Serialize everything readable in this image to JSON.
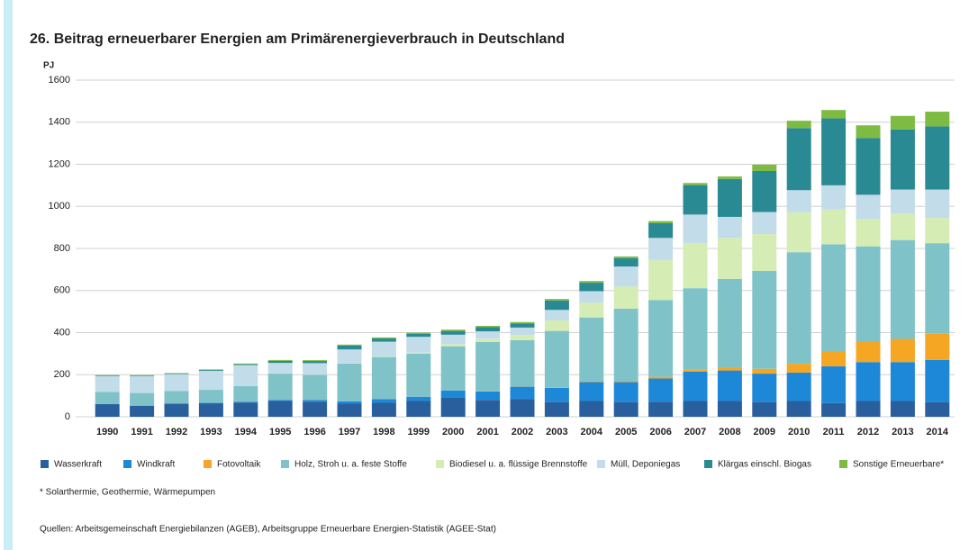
{
  "chart_data": {
    "type": "stacked_bar",
    "title": "26. Beitrag erneuerbarer Energien am Primärenergieverbrauch in Deutschland",
    "y_label": "PJ",
    "categories": [
      "1990",
      "1991",
      "1992",
      "1993",
      "1994",
      "1995",
      "1996",
      "1997",
      "1998",
      "1999",
      "2000",
      "2001",
      "2002",
      "2003",
      "2004",
      "2005",
      "2006",
      "2007",
      "2008",
      "2009",
      "2010",
      "2011",
      "2012",
      "2013",
      "2014"
    ],
    "series": [
      {
        "name": "Wasserkraft",
        "color": "#2a5f9e",
        "values": [
          60,
          52,
          62,
          64,
          68,
          75,
          72,
          62,
          68,
          75,
          90,
          80,
          85,
          70,
          75,
          70,
          72,
          75,
          75,
          70,
          75,
          65,
          75,
          75,
          70
        ]
      },
      {
        "name": "Windkraft",
        "color": "#1e88d8",
        "values": [
          0,
          1,
          1,
          2,
          3,
          5,
          7,
          11,
          16,
          20,
          35,
          40,
          58,
          67,
          90,
          95,
          110,
          140,
          145,
          135,
          135,
          175,
          185,
          185,
          200
        ]
      },
      {
        "name": "Fotovoltaik",
        "color": "#f5a623",
        "values": [
          0,
          0,
          0,
          0,
          0,
          0,
          0,
          0,
          0,
          0,
          0,
          1,
          1,
          1,
          2,
          4,
          8,
          11,
          15,
          23,
          42,
          70,
          95,
          110,
          125
        ]
      },
      {
        "name": "Holz, Stroh u. a. feste Stoffe",
        "color": "#7fc3c9",
        "values": [
          58,
          60,
          60,
          62,
          75,
          125,
          120,
          180,
          200,
          205,
          210,
          235,
          220,
          270,
          305,
          345,
          365,
          385,
          420,
          465,
          530,
          510,
          455,
          470,
          430
        ]
      },
      {
        "name": "Biodiesel u. a. flüssige Brennstoffe",
        "color": "#d5ecb5",
        "values": [
          0,
          0,
          0,
          0,
          0,
          1,
          1,
          2,
          3,
          5,
          10,
          15,
          25,
          50,
          70,
          105,
          190,
          215,
          195,
          175,
          190,
          165,
          130,
          125,
          120
        ]
      },
      {
        "name": "Müll, Deponiegas",
        "color": "#c2dcea",
        "values": [
          75,
          80,
          80,
          90,
          100,
          50,
          55,
          65,
          70,
          75,
          45,
          35,
          35,
          50,
          55,
          95,
          105,
          135,
          100,
          105,
          105,
          115,
          115,
          115,
          135
        ]
      },
      {
        "name": "Klärgas einschl. Biogas",
        "color": "#2a8a93",
        "values": [
          3,
          3,
          3,
          4,
          4,
          10,
          10,
          18,
          15,
          15,
          18,
          20,
          20,
          45,
          40,
          40,
          70,
          140,
          180,
          195,
          295,
          318,
          270,
          285,
          300
        ]
      },
      {
        "name": "Sonstige Erneuerbare*",
        "color": "#7dbb42",
        "values": [
          2,
          2,
          2,
          3,
          3,
          4,
          4,
          5,
          5,
          5,
          6,
          6,
          6,
          7,
          8,
          8,
          10,
          10,
          12,
          30,
          35,
          40,
          60,
          65,
          70
        ]
      }
    ],
    "ylim": [
      0,
      1600
    ],
    "yticks": [
      0,
      200,
      400,
      600,
      800,
      1000,
      1200,
      1400,
      1600
    ],
    "grid": true,
    "footnote": "* Solarthermie, Geothermie, Wärmepumpen",
    "source": "Quellen: Arbeitsgemeinschaft Energiebilanzen (AGEB), Arbeitsgruppe Erneuerbare Energien-Statistik (AGEE-Stat)"
  }
}
